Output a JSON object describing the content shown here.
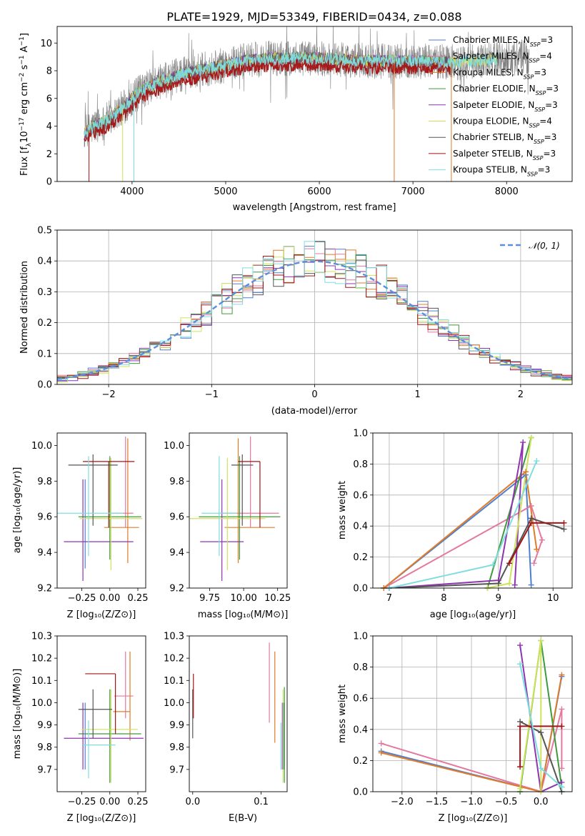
{
  "title": "PLATE=1929, MJD=53349, FIBERID=0434, z=0.088",
  "colors": {
    "Chabrier MILES": "#4d7fd0",
    "Salpeter MILES": "#e4789f",
    "Kroupa MILES": "#e07b2a",
    "Chabrier ELODIE": "#3f9a3f",
    "Salpeter ELODIE": "#8e34b0",
    "Kroupa ELODIE": "#cfe35a",
    "Chabrier STELIB": "#555555",
    "Salpeter STELIB": "#a51414",
    "Kroupa STELIB": "#7fdde0",
    "gaussian": "#5b8fdc"
  },
  "chart_data": [
    {
      "id": "spectrum",
      "type": "line",
      "title": "PLATE=1929, MJD=53349, FIBERID=0434, z=0.088",
      "xlabel": "wavelength [Angstrom, rest frame]",
      "ylabel": "Flux [f_λ 10^-17 erg cm^-2 s^-1 A^-1]",
      "xlim": [
        3200,
        8700
      ],
      "ylim": [
        0,
        11.2
      ],
      "xticks": [
        4000,
        5000,
        6000,
        7000,
        8000
      ],
      "yticks": [
        0,
        2,
        4,
        6,
        8,
        10
      ],
      "grid": false,
      "legend_position": "top-right",
      "legend": [
        "Chabrier MILES, N_SSP=3",
        "Salpeter MILES, N_SSP=4",
        "Kroupa MILES, N_SSP=3",
        "Chabrier ELODIE, N_SSP=3",
        "Salpeter ELODIE, N_SSP=3",
        "Kroupa ELODIE, N_SSP=4",
        "Chabrier STELIB, N_SSP=3",
        "Salpeter STELIB, N_SSP=3",
        "Kroupa STELIB, N_SSP=3"
      ],
      "continuum": {
        "x": [
          3500,
          3600,
          3700,
          3800,
          3900,
          4000,
          4100,
          4200,
          4300,
          4400,
          4500,
          4700,
          5000,
          5200,
          5500,
          6000,
          6500,
          7000,
          7500,
          7800,
          8200
        ],
        "y": [
          3.5,
          4.0,
          4.3,
          4.8,
          5.3,
          6.0,
          6.5,
          6.9,
          7.2,
          7.4,
          7.7,
          8.0,
          8.4,
          8.7,
          8.9,
          8.9,
          8.7,
          8.7,
          8.6,
          8.8,
          9.0
        ]
      },
      "observed_range": [
        3490,
        8240
      ],
      "model_range": [
        3490,
        7900
      ]
    },
    {
      "id": "residuals",
      "type": "line",
      "xlabel": "(data-model)/error",
      "ylabel": "Normed distribution",
      "xlim": [
        -2.5,
        2.5
      ],
      "ylim": [
        0,
        0.5
      ],
      "xticks": [
        -2,
        -1,
        0,
        1,
        2
      ],
      "yticks": [
        0.0,
        0.1,
        0.2,
        0.3,
        0.4,
        0.5
      ],
      "grid": true,
      "legend_position": "top-right",
      "legend": [
        "N(0,1)"
      ],
      "reference": {
        "name": "N(0,1)",
        "mu": 0,
        "sigma": 1
      }
    },
    {
      "id": "age-vs-Z",
      "type": "scatter",
      "xlabel": "Z [log10(Z/Z⊙)]",
      "ylabel": "age [log10(age/yr)]",
      "xlim": [
        -0.47,
        0.32
      ],
      "ylim": [
        9.2,
        10.07
      ],
      "xticks": [
        -0.25,
        0.0,
        0.25
      ],
      "yticks": [
        9.2,
        9.4,
        9.6,
        9.8,
        10.0
      ],
      "grid": false,
      "points": [
        {
          "model": "Chabrier MILES",
          "x": -0.22,
          "xerr": [
            0.0,
            0.0
          ],
          "y": 9.56,
          "yerr": [
            0.25,
            0.25
          ]
        },
        {
          "model": "Salpeter MILES",
          "x": 0.14,
          "xerr": [
            0.12,
            0.07
          ],
          "y": 9.62,
          "yerr": [
            0.08,
            0.43
          ]
        },
        {
          "model": "Kroupa MILES",
          "x": 0.16,
          "xerr": [
            0.21,
            0.1
          ],
          "y": 9.54,
          "yerr": [
            0.2,
            0.5
          ]
        },
        {
          "model": "Chabrier ELODIE",
          "x": 0.0,
          "xerr": [
            0.28,
            0.28
          ],
          "y": 9.6,
          "yerr": [
            0.24,
            0.34
          ]
        },
        {
          "model": "Salpeter ELODIE",
          "x": -0.24,
          "xerr": [
            0.17,
            0.45
          ],
          "y": 9.46,
          "yerr": [
            0.22,
            0.35
          ]
        },
        {
          "model": "Kroupa ELODIE",
          "x": 0.01,
          "xerr": [
            0.28,
            0.28
          ],
          "y": 9.59,
          "yerr": [
            0.29,
            0.34
          ]
        },
        {
          "model": "Chabrier STELIB",
          "x": -0.15,
          "xerr": [
            0.22,
            0.22
          ],
          "y": 9.89,
          "yerr": [
            0.34,
            0.06
          ]
        },
        {
          "model": "Salpeter STELIB",
          "x": -0.01,
          "xerr": [
            0.23,
            0.23
          ],
          "y": 9.91,
          "yerr": [
            0.37,
            0.0
          ]
        },
        {
          "model": "Kroupa STELIB",
          "x": -0.19,
          "xerr": [
            0.28,
            0.31
          ],
          "y": 9.62,
          "yerr": [
            0.24,
            0.32
          ]
        }
      ]
    },
    {
      "id": "age-vs-mass",
      "type": "scatter",
      "xlabel": "mass [log10(M/M⊙)]",
      "ylabel": "",
      "xlim": [
        9.6,
        10.32
      ],
      "ylim": [
        9.2,
        10.07
      ],
      "xticks": [
        9.75,
        10.0,
        10.25
      ],
      "yticks": [
        9.2,
        9.4,
        9.6,
        9.8,
        10.0
      ],
      "grid": false,
      "points": [
        {
          "model": "Chabrier MILES",
          "x": 10.0,
          "xerr": [
            0.0,
            0.0
          ],
          "y": 9.54,
          "yerr": [
            0.0,
            0.0
          ]
        },
        {
          "model": "Salpeter MILES",
          "x": 10.05,
          "xerr": [
            0.21,
            0.21
          ],
          "y": 9.62,
          "yerr": [
            0.08,
            0.43
          ]
        },
        {
          "model": "Kroupa MILES",
          "x": 9.96,
          "xerr": [
            0.1,
            0.27
          ],
          "y": 9.54,
          "yerr": [
            0.2,
            0.5
          ]
        },
        {
          "model": "Chabrier ELODIE",
          "x": 9.97,
          "xerr": [
            0.3,
            0.3
          ],
          "y": 9.6,
          "yerr": [
            0.24,
            0.34
          ]
        },
        {
          "model": "Salpeter ELODIE",
          "x": 9.84,
          "xerr": [
            0.16,
            0.16
          ],
          "y": 9.46,
          "yerr": [
            0.22,
            0.35
          ]
        },
        {
          "model": "Kroupa ELODIE",
          "x": 9.88,
          "xerr": [
            0.28,
            0.28
          ],
          "y": 9.59,
          "yerr": [
            0.29,
            0.34
          ]
        },
        {
          "model": "Chabrier STELIB",
          "x": 9.99,
          "xerr": [
            0.08,
            0.08
          ],
          "y": 9.89,
          "yerr": [
            0.34,
            0.06
          ]
        },
        {
          "model": "Salpeter STELIB",
          "x": 10.12,
          "xerr": [
            0.16,
            0.0
          ],
          "y": 9.91,
          "yerr": [
            0.37,
            0.0
          ]
        },
        {
          "model": "Kroupa STELIB",
          "x": 9.82,
          "xerr": [
            0.13,
            0.13
          ],
          "y": 9.62,
          "yerr": [
            0.24,
            0.32
          ]
        }
      ]
    },
    {
      "id": "mass-weight-vs-age",
      "type": "line",
      "xlabel": "age  [log10(age/yr)]",
      "ylabel": "mass weight",
      "xlim": [
        6.7,
        10.35
      ],
      "ylim": [
        0.0,
        1.0
      ],
      "xticks": [
        7,
        8,
        9,
        10
      ],
      "yticks": [
        0.0,
        0.2,
        0.4,
        0.6,
        0.8,
        1.0
      ],
      "grid": true,
      "series": [
        {
          "model": "Chabrier MILES",
          "x": [
            6.9,
            9.5,
            9.6
          ],
          "y": [
            0.0,
            0.73,
            0.02
          ]
        },
        {
          "model": "Salpeter MILES",
          "x": [
            6.9,
            9.6,
            9.8,
            9.65
          ],
          "y": [
            0.0,
            0.53,
            0.31,
            0.16
          ]
        },
        {
          "model": "Kroupa MILES",
          "x": [
            6.9,
            9.5,
            9.7
          ],
          "y": [
            0.0,
            0.75,
            0.25
          ]
        },
        {
          "model": "Chabrier ELODIE",
          "x": [
            8.8,
            9.6
          ],
          "y": [
            0.0,
            0.97
          ]
        },
        {
          "model": "Salpeter ELODIE",
          "x": [
            7.0,
            9.0,
            9.45,
            9.3
          ],
          "y": [
            0.0,
            0.05,
            0.94,
            0.02
          ]
        },
        {
          "model": "Kroupa ELODIE",
          "x": [
            8.8,
            9.2,
            9.6
          ],
          "y": [
            0.0,
            0.03,
            0.97
          ]
        },
        {
          "model": "Chabrier STELIB",
          "x": [
            7.0,
            9.0,
            9.6,
            10.2
          ],
          "y": [
            0.0,
            0.03,
            0.45,
            0.38
          ]
        },
        {
          "model": "Salpeter STELIB",
          "x": [
            9.2,
            9.6,
            10.2
          ],
          "y": [
            0.16,
            0.42,
            0.42
          ]
        },
        {
          "model": "Kroupa STELIB",
          "x": [
            7.0,
            8.9,
            9.7
          ],
          "y": [
            0.0,
            0.15,
            0.82
          ]
        }
      ]
    },
    {
      "id": "mass-vs-Z",
      "type": "scatter",
      "xlabel": "Z [log10(Z/Z⊙)]",
      "ylabel": "mass [log10(M/M⊙)]",
      "xlim": [
        -0.47,
        0.32
      ],
      "ylim": [
        9.6,
        10.3
      ],
      "xticks": [
        -0.25,
        0.0,
        0.25
      ],
      "yticks": [
        9.7,
        9.8,
        9.9,
        10.0,
        10.1,
        10.2,
        10.3
      ],
      "grid": false,
      "points": [
        {
          "model": "Chabrier MILES",
          "x": -0.22,
          "xerr": [
            0.0,
            0.0
          ],
          "y": 9.84,
          "yerr": [
            0.14,
            0.16
          ]
        },
        {
          "model": "Salpeter MILES",
          "x": 0.14,
          "xerr": [
            0.1,
            0.07
          ],
          "y": 10.03,
          "yerr": [
            0.1,
            0.2
          ]
        },
        {
          "model": "Kroupa MILES",
          "x": 0.18,
          "xerr": [
            0.15,
            0.0
          ],
          "y": 9.96,
          "yerr": [
            0.13,
            0.27
          ]
        },
        {
          "model": "Chabrier ELODIE",
          "x": 0.0,
          "xerr": [
            0.28,
            0.28
          ],
          "y": 9.86,
          "yerr": [
            0.22,
            0.2
          ]
        },
        {
          "model": "Salpeter ELODIE",
          "x": -0.24,
          "xerr": [
            0.17,
            0.54
          ],
          "y": 9.84,
          "yerr": [
            0.14,
            0.16
          ]
        },
        {
          "model": "Kroupa ELODIE",
          "x": 0.01,
          "xerr": [
            0.26,
            0.24
          ],
          "y": 9.88,
          "yerr": [
            0.24,
            0.18
          ]
        },
        {
          "model": "Chabrier STELIB",
          "x": -0.15,
          "xerr": [
            0.13,
            0.17
          ],
          "y": 9.97,
          "yerr": [
            0.13,
            0.09
          ]
        },
        {
          "model": "Salpeter STELIB",
          "x": 0.05,
          "xerr": [
            0.27,
            0.0
          ],
          "y": 10.13,
          "yerr": [
            0.27,
            0.0
          ]
        },
        {
          "model": "Kroupa STELIB",
          "x": -0.19,
          "xerr": [
            0.05,
            0.24
          ],
          "y": 9.81,
          "yerr": [
            0.15,
            0.11
          ]
        }
      ]
    },
    {
      "id": "mass-vs-EBV",
      "type": "scatter",
      "xlabel": "E(B-V)",
      "ylabel": "",
      "xlim": [
        -0.005,
        0.138
      ],
      "ylim": [
        9.6,
        10.3
      ],
      "xticks": [
        0.0,
        0.1
      ],
      "yticks": [
        9.7,
        9.8,
        9.9,
        10.0,
        10.1,
        10.2,
        10.3
      ],
      "grid": false,
      "points": [
        {
          "model": "Chabrier MILES",
          "x": 0.133,
          "y": 9.84,
          "yerr": [
            0.14,
            0.16
          ]
        },
        {
          "model": "Salpeter MILES",
          "x": 0.112,
          "y": 10.03,
          "yerr": [
            0.12,
            0.24
          ]
        },
        {
          "model": "Kroupa MILES",
          "x": 0.12,
          "y": 9.96,
          "yerr": [
            0.14,
            0.27
          ]
        },
        {
          "model": "Chabrier ELODIE",
          "x": 0.134,
          "y": 9.86,
          "yerr": [
            0.22,
            0.21
          ]
        },
        {
          "model": "Salpeter ELODIE",
          "x": 0.131,
          "y": 9.84,
          "yerr": [
            0.14,
            0.16
          ]
        },
        {
          "model": "Kroupa ELODIE",
          "x": 0.132,
          "y": 9.88,
          "yerr": [
            0.24,
            0.18
          ]
        },
        {
          "model": "Chabrier STELIB",
          "x": 0.0,
          "y": 9.97,
          "yerr": [
            0.13,
            0.09
          ]
        },
        {
          "model": "Salpeter STELIB",
          "x": 0.001,
          "y": 10.13,
          "yerr": [
            0.2,
            0.0
          ]
        },
        {
          "model": "Kroupa STELIB",
          "x": 0.129,
          "y": 9.81,
          "yerr": [
            0.11,
            0.1
          ]
        }
      ]
    },
    {
      "id": "mass-weight-vs-Z",
      "type": "line",
      "xlabel": "Z [log10(Z/Z⊙)]",
      "ylabel": "mass weight",
      "xlim": [
        -2.42,
        0.45
      ],
      "ylim": [
        0.0,
        1.0
      ],
      "xticks": [
        -2.0,
        -1.5,
        -1.0,
        -0.5,
        0.0
      ],
      "yticks": [
        0.0,
        0.2,
        0.4,
        0.6,
        0.8,
        1.0
      ],
      "grid": true,
      "series": [
        {
          "model": "Chabrier MILES",
          "x": [
            -2.3,
            0.0,
            0.3
          ],
          "y": [
            0.26,
            0.0,
            0.74
          ]
        },
        {
          "model": "Salpeter MILES",
          "x": [
            -2.3,
            0.0,
            0.3,
            0.3
          ],
          "y": [
            0.31,
            0.0,
            0.53,
            0.15
          ]
        },
        {
          "model": "Kroupa MILES",
          "x": [
            -2.3,
            0.0,
            0.3
          ],
          "y": [
            0.25,
            0.0,
            0.75
          ]
        },
        {
          "model": "Chabrier ELODIE",
          "x": [
            -0.3,
            0.0,
            0.3
          ],
          "y": [
            0.0,
            0.97,
            0.03
          ]
        },
        {
          "model": "Salpeter ELODIE",
          "x": [
            -0.3,
            0.0,
            0.3
          ],
          "y": [
            0.94,
            0.0,
            0.06
          ]
        },
        {
          "model": "Kroupa ELODIE",
          "x": [
            -0.3,
            0.0,
            0.0
          ],
          "y": [
            0.02,
            0.97,
            0.0
          ]
        },
        {
          "model": "Chabrier STELIB",
          "x": [
            -0.3,
            0.0,
            0.3
          ],
          "y": [
            0.45,
            0.38,
            0.0
          ]
        },
        {
          "model": "Salpeter STELIB",
          "x": [
            -0.3,
            -0.3,
            0.3
          ],
          "y": [
            0.16,
            0.42,
            0.42
          ]
        },
        {
          "model": "Kroupa STELIB",
          "x": [
            -0.3,
            0.0,
            0.3
          ],
          "y": [
            0.82,
            0.15,
            0.03
          ]
        }
      ]
    }
  ]
}
